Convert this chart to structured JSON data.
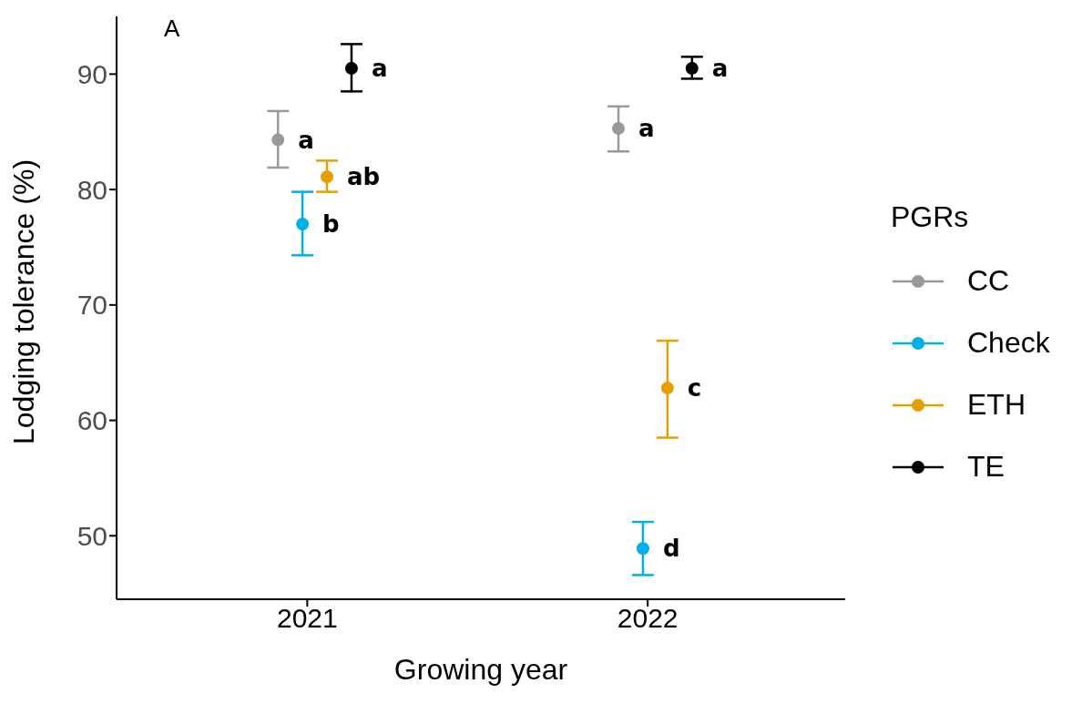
{
  "chart_data": {
    "type": "scatter",
    "xlabel": "Growing year",
    "ylabel": "Lodging tolerance (%)",
    "legend_title": "PGRs",
    "categories": [
      "2021",
      "2022"
    ],
    "series": [
      {
        "name": "CC",
        "color": "#999999",
        "values": [
          84.3,
          85.3
        ],
        "errors": [
          [
            81.9,
            86.8
          ],
          [
            83.3,
            87.2
          ]
        ],
        "value_labels": [
          "a",
          "a"
        ]
      },
      {
        "name": "Check",
        "color": "#00b0e6",
        "values": [
          77.0,
          48.9
        ],
        "errors": [
          [
            74.3,
            79.8
          ],
          [
            46.6,
            51.2
          ]
        ],
        "value_labels": [
          "b",
          "d"
        ]
      },
      {
        "name": "ETH",
        "color": "#e69f00",
        "values": [
          81.1,
          62.8
        ],
        "errors": [
          [
            79.8,
            82.5
          ],
          [
            58.5,
            66.9
          ]
        ],
        "value_labels": [
          "ab",
          "c"
        ]
      },
      {
        "name": "TE",
        "color": "#000000",
        "values": [
          90.5,
          90.5
        ],
        "errors": [
          [
            88.5,
            92.6
          ],
          [
            89.6,
            91.5
          ]
        ],
        "value_labels": [
          "a",
          "a"
        ]
      }
    ],
    "ylim": [
      44.5,
      95
    ],
    "yticks": [
      50,
      60,
      70,
      80,
      90
    ],
    "grid": false,
    "legend": "right",
    "marker": "circle",
    "annotations": [
      "A"
    ]
  }
}
